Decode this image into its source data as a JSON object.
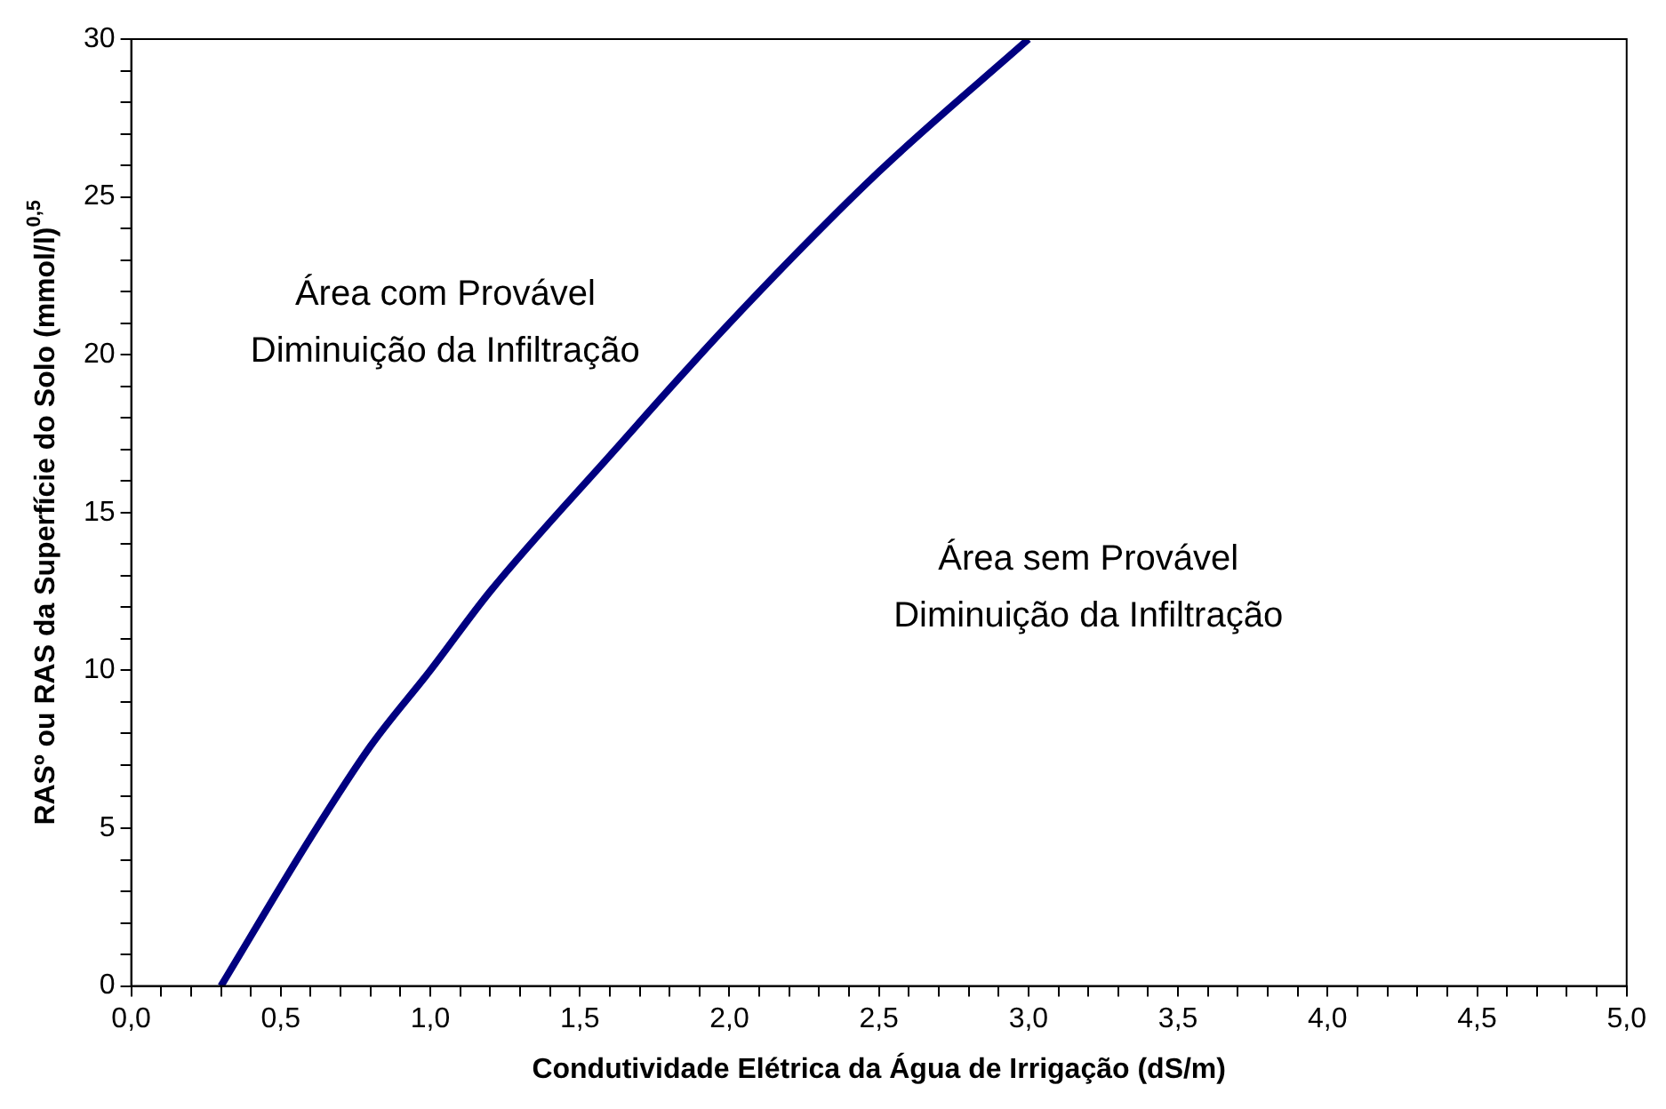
{
  "chart_data": {
    "type": "line",
    "xlabel": "Condutividade Elétrica da Água de Irrigação (dS/m)",
    "ylabel": "RASº ou RAS da Superfície do Solo (mmol/l)$^{0,5}$",
    "x": [
      0.3,
      0.6,
      0.8,
      1.0,
      1.2,
      1.6,
      2.0,
      2.5,
      3.0
    ],
    "series": [
      {
        "color": "#000080",
        "values": [
          0,
          4.7,
          7.6,
          10,
          12.5,
          16.8,
          21,
          25.8,
          30
        ]
      }
    ],
    "xlim": [
      0,
      5
    ],
    "ylim": [
      0,
      30
    ],
    "xticks": [
      {
        "value": 0,
        "label": "0,0"
      },
      {
        "value": 0.1,
        "label": null
      },
      {
        "value": 0.2,
        "label": null
      },
      {
        "value": 0.3,
        "label": null
      },
      {
        "value": 0.4,
        "label": null
      },
      {
        "value": 0.5,
        "label": "0,5"
      },
      {
        "value": 0.6,
        "label": null
      },
      {
        "value": 0.7,
        "label": null
      },
      {
        "value": 0.8,
        "label": null
      },
      {
        "value": 0.9,
        "label": null
      },
      {
        "value": 1,
        "label": "1,0"
      },
      {
        "value": 1.1,
        "label": null
      },
      {
        "value": 1.2,
        "label": null
      },
      {
        "value": 1.3,
        "label": null
      },
      {
        "value": 1.4,
        "label": null
      },
      {
        "value": 1.5,
        "label": "1,5"
      },
      {
        "value": 1.6,
        "label": null
      },
      {
        "value": 1.7,
        "label": null
      },
      {
        "value": 1.8,
        "label": null
      },
      {
        "value": 1.9,
        "label": null
      },
      {
        "value": 2,
        "label": "2,0"
      },
      {
        "value": 2.1,
        "label": null
      },
      {
        "value": 2.2,
        "label": null
      },
      {
        "value": 2.3,
        "label": null
      },
      {
        "value": 2.4,
        "label": null
      },
      {
        "value": 2.5,
        "label": "2,5"
      },
      {
        "value": 2.6,
        "label": null
      },
      {
        "value": 2.7,
        "label": null
      },
      {
        "value": 2.8,
        "label": null
      },
      {
        "value": 2.9,
        "label": null
      },
      {
        "value": 3,
        "label": "3,0"
      },
      {
        "value": 3.1,
        "label": null
      },
      {
        "value": 3.2,
        "label": null
      },
      {
        "value": 3.3,
        "label": null
      },
      {
        "value": 3.4,
        "label": null
      },
      {
        "value": 3.5,
        "label": "3,5"
      },
      {
        "value": 3.6,
        "label": null
      },
      {
        "value": 3.7,
        "label": null
      },
      {
        "value": 3.8,
        "label": null
      },
      {
        "value": 3.9,
        "label": null
      },
      {
        "value": 4,
        "label": "4,0"
      },
      {
        "value": 4.1,
        "label": null
      },
      {
        "value": 4.2,
        "label": null
      },
      {
        "value": 4.3,
        "label": null
      },
      {
        "value": 4.4,
        "label": null
      },
      {
        "value": 4.5,
        "label": "4,5"
      },
      {
        "value": 4.6,
        "label": null
      },
      {
        "value": 4.7,
        "label": null
      },
      {
        "value": 4.8,
        "label": null
      },
      {
        "value": 4.9,
        "label": null
      },
      {
        "value": 5,
        "label": "5,0"
      }
    ],
    "yticks": [
      0,
      {
        "value": 1,
        "label": null
      },
      {
        "value": 2,
        "label": null
      },
      {
        "value": 3,
        "label": null
      },
      {
        "value": 4,
        "label": null
      },
      5,
      {
        "value": 6,
        "label": null
      },
      {
        "value": 7,
        "label": null
      },
      {
        "value": 8,
        "label": null
      },
      {
        "value": 9,
        "label": null
      },
      10,
      {
        "value": 11,
        "label": null
      },
      {
        "value": 12,
        "label": null
      },
      {
        "value": 13,
        "label": null
      },
      {
        "value": 14,
        "label": null
      },
      15,
      {
        "value": 16,
        "label": null
      },
      {
        "value": 17,
        "label": null
      },
      {
        "value": 18,
        "label": null
      },
      {
        "value": 19,
        "label": null
      },
      20,
      {
        "value": 21,
        "label": null
      },
      {
        "value": 22,
        "label": null
      },
      {
        "value": 23,
        "label": null
      },
      {
        "value": 24,
        "label": null
      },
      25,
      {
        "value": 26,
        "label": null
      },
      {
        "value": 27,
        "label": null
      },
      {
        "value": 28,
        "label": null
      },
      {
        "value": 29,
        "label": null
      },
      30
    ],
    "annotations": [
      "Área com Provável\nDiminuição da Infiltração",
      "Área sem Provável\nDiminuição da Infiltração"
    ],
    "marker": "none",
    "line_style": "solid",
    "grid": false,
    "legend": false
  }
}
